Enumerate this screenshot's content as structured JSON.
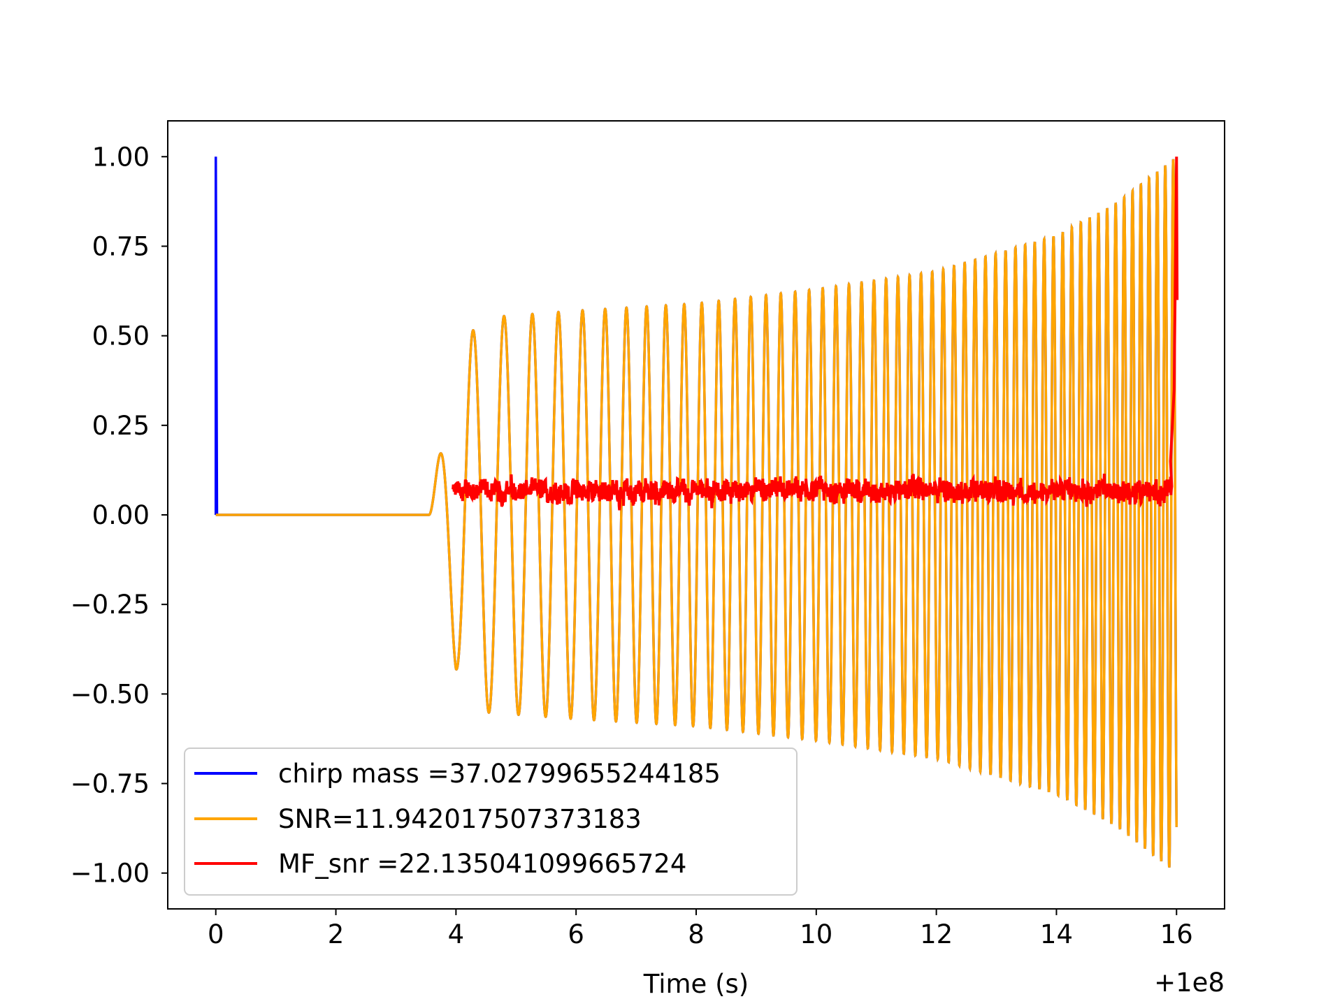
{
  "chart_data": {
    "type": "line",
    "title": "",
    "xlabel": "Time (s)",
    "ylabel": "",
    "x_offset_label": "+1e8",
    "xlim": [
      -0.8,
      16.8
    ],
    "ylim": [
      -1.1,
      1.1
    ],
    "x_ticks": [
      0,
      2,
      4,
      6,
      8,
      10,
      12,
      14,
      16
    ],
    "x_tick_labels": [
      "0",
      "2",
      "4",
      "6",
      "8",
      "10",
      "12",
      "14",
      "16"
    ],
    "y_ticks": [
      1.0,
      0.75,
      0.5,
      0.25,
      0.0,
      -0.25,
      -0.5,
      -0.75,
      -1.0
    ],
    "y_tick_labels": [
      "1.00",
      "0.75",
      "0.50",
      "0.25",
      "0.00",
      "−0.25",
      "−0.50",
      "−0.75",
      "−1.00"
    ],
    "grid": false,
    "legend_position": "lower-left",
    "series": [
      {
        "name": "chirp mass =37.02799655244185",
        "color": "#0000ff",
        "description_points": {
          "spike_at_start": {
            "x": 0.0,
            "y_peak": 1.0
          },
          "flat_until": 3.55,
          "chirp_start": 3.55,
          "chirp_end": 16.0,
          "envelope": [
            [
              3.6,
              0.05
            ],
            [
              4.0,
              0.43
            ],
            [
              4.4,
              0.55
            ],
            [
              6.0,
              0.57
            ],
            [
              8.0,
              0.59
            ],
            [
              10.0,
              0.63
            ],
            [
              12.0,
              0.68
            ],
            [
              14.0,
              0.78
            ],
            [
              15.0,
              0.87
            ],
            [
              16.0,
              1.0
            ]
          ]
        }
      },
      {
        "name": "SNR=11.942017507373183",
        "color": "#ffa500",
        "description_points": {
          "flat_from": 0.0,
          "flat_until": 3.55,
          "chirp_start": 3.55,
          "chirp_end": 16.0,
          "envelope": [
            [
              3.6,
              0.05
            ],
            [
              4.0,
              0.43
            ],
            [
              4.4,
              0.55
            ],
            [
              6.0,
              0.57
            ],
            [
              8.0,
              0.59
            ],
            [
              10.0,
              0.63
            ],
            [
              12.0,
              0.68
            ],
            [
              14.0,
              0.78
            ],
            [
              15.0,
              0.87
            ],
            [
              16.0,
              1.0
            ]
          ]
        }
      },
      {
        "name": "MF_snr =22.135041099665724",
        "color": "#ff0000",
        "description_points": {
          "start": 3.95,
          "end": 16.0,
          "baseline_range": [
            0.0,
            0.15
          ],
          "final_peak": {
            "x": 16.0,
            "y": 1.0
          }
        }
      }
    ]
  }
}
